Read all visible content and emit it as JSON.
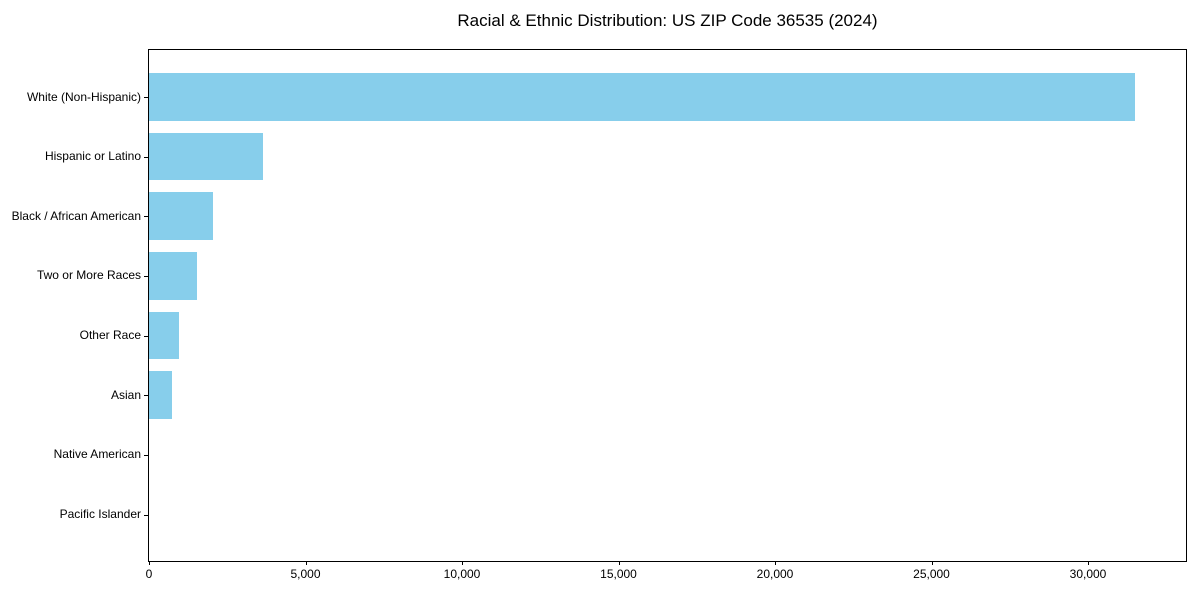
{
  "chart_data": {
    "type": "bar",
    "orientation": "horizontal",
    "title": "Racial & Ethnic Distribution: US ZIP Code 36535 (2024)",
    "categories": [
      "White (Non-Hispanic)",
      "Hispanic or Latino",
      "Black / African American",
      "Two or More Races",
      "Other Race",
      "Asian",
      "Native American",
      "Pacific Islander"
    ],
    "values": [
      31500,
      3650,
      2050,
      1530,
      960,
      740,
      0,
      0
    ],
    "xlabel": "",
    "ylabel": "",
    "xlim": [
      0,
      33130
    ],
    "xticks": [
      0,
      5000,
      10000,
      15000,
      20000,
      25000,
      30000
    ],
    "xtick_labels": [
      "0",
      "5,000",
      "10,000",
      "15,000",
      "20,000",
      "25,000",
      "30,000"
    ],
    "grid": false,
    "legend": "none",
    "bar_color": "#87CEEB",
    "axis_color": "#000000",
    "background_color": "#FFFFFF"
  }
}
